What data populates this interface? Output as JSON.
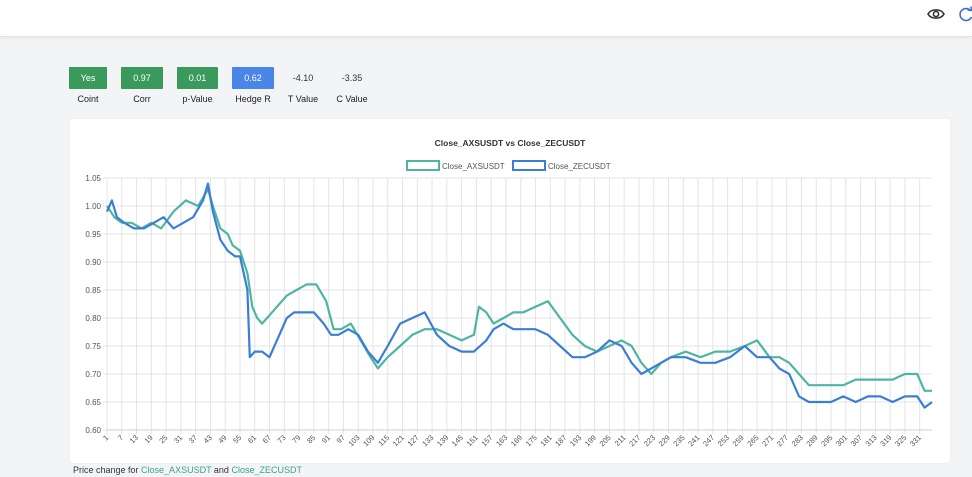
{
  "icons": {
    "view": "eye-icon",
    "refresh": "refresh-icon"
  },
  "stats": [
    {
      "label": "Coint",
      "value": "Yes",
      "color": "#3a9a5b"
    },
    {
      "label": "Corr",
      "value": "0.97",
      "color": "#3a9a5b"
    },
    {
      "label": "p-Value",
      "value": "0.01",
      "color": "#3a9a5b"
    },
    {
      "label": "Hedge R",
      "value": "0.62",
      "color": "#4a86e8"
    },
    {
      "label": "T Value",
      "value": "-4.10",
      "color": ""
    },
    {
      "label": "C Value",
      "value": "-3.35",
      "color": ""
    }
  ],
  "footer": {
    "prefix": "Price change for ",
    "ticker_a": "Close_AXSUSDT",
    "conj": " and ",
    "ticker_b": "Close_ZECUSDT"
  },
  "chart_data": {
    "type": "line",
    "title": "Close_AXSUSDT vs Close_ZECUSDT",
    "legend_position": "top-center",
    "grid": true,
    "xlim": [
      1,
      336
    ],
    "ylim": [
      0.6,
      1.05
    ],
    "x_ticks": [
      1,
      7,
      13,
      19,
      25,
      31,
      37,
      43,
      49,
      55,
      61,
      67,
      73,
      79,
      85,
      91,
      97,
      103,
      109,
      115,
      121,
      127,
      133,
      139,
      145,
      151,
      157,
      163,
      169,
      175,
      181,
      187,
      193,
      199,
      205,
      211,
      217,
      223,
      229,
      235,
      241,
      247,
      253,
      259,
      265,
      271,
      277,
      283,
      289,
      295,
      301,
      307,
      313,
      319,
      325,
      331
    ],
    "y_ticks": [
      0.6,
      0.65,
      0.7,
      0.75,
      0.8,
      0.85,
      0.9,
      0.95,
      1.0,
      1.05
    ],
    "y_tick_labels": [
      "0.60",
      "0.65",
      "0.70",
      "0.75",
      "0.80",
      "0.85",
      "0.90",
      "0.95",
      "1.00",
      "1.05"
    ],
    "series": [
      {
        "name": "Close_AXSUSDT",
        "color": "#4db6a3",
        "x": [
          1,
          4,
          7,
          11,
          15,
          19,
          23,
          28,
          33,
          38,
          42,
          44,
          47,
          50,
          52,
          55,
          58,
          60,
          62,
          64,
          66,
          70,
          74,
          78,
          82,
          86,
          90,
          93,
          96,
          100,
          104,
          108,
          111,
          115,
          120,
          125,
          130,
          135,
          140,
          145,
          150,
          152,
          155,
          158,
          162,
          166,
          170,
          175,
          180,
          185,
          190,
          195,
          200,
          205,
          210,
          214,
          218,
          222,
          226,
          230,
          236,
          242,
          248,
          254,
          260,
          265,
          270,
          274,
          278,
          282,
          286,
          290,
          295,
          300,
          305,
          310,
          315,
          320,
          325,
          330,
          333,
          336
        ],
        "y": [
          1.0,
          0.98,
          0.97,
          0.97,
          0.96,
          0.97,
          0.96,
          0.99,
          1.01,
          1.0,
          1.03,
          1.0,
          0.96,
          0.95,
          0.93,
          0.92,
          0.88,
          0.82,
          0.8,
          0.79,
          0.8,
          0.82,
          0.84,
          0.85,
          0.86,
          0.86,
          0.83,
          0.78,
          0.78,
          0.79,
          0.76,
          0.73,
          0.71,
          0.73,
          0.75,
          0.77,
          0.78,
          0.78,
          0.77,
          0.76,
          0.77,
          0.82,
          0.81,
          0.79,
          0.8,
          0.81,
          0.81,
          0.82,
          0.83,
          0.8,
          0.77,
          0.75,
          0.74,
          0.75,
          0.76,
          0.75,
          0.72,
          0.7,
          0.72,
          0.73,
          0.74,
          0.73,
          0.74,
          0.74,
          0.75,
          0.76,
          0.73,
          0.73,
          0.72,
          0.7,
          0.68,
          0.68,
          0.68,
          0.68,
          0.69,
          0.69,
          0.69,
          0.69,
          0.7,
          0.7,
          0.67,
          0.67
        ]
      },
      {
        "name": "Close_ZECUSDT",
        "color": "#3b7fd4",
        "x": [
          1,
          3,
          5,
          8,
          12,
          16,
          20,
          24,
          28,
          32,
          36,
          40,
          42,
          44,
          47,
          50,
          53,
          55,
          58,
          59,
          61,
          64,
          67,
          70,
          74,
          77,
          81,
          85,
          89,
          92,
          95,
          99,
          103,
          107,
          111,
          115,
          120,
          125,
          130,
          135,
          140,
          145,
          150,
          155,
          158,
          162,
          166,
          170,
          175,
          180,
          185,
          190,
          195,
          200,
          205,
          210,
          214,
          218,
          222,
          226,
          230,
          236,
          242,
          248,
          254,
          260,
          265,
          270,
          274,
          278,
          282,
          286,
          290,
          295,
          300,
          305,
          310,
          315,
          320,
          325,
          330,
          333,
          336
        ],
        "y": [
          0.99,
          1.01,
          0.98,
          0.97,
          0.96,
          0.96,
          0.97,
          0.98,
          0.96,
          0.97,
          0.98,
          1.01,
          1.04,
          0.99,
          0.94,
          0.92,
          0.91,
          0.91,
          0.85,
          0.73,
          0.74,
          0.74,
          0.73,
          0.76,
          0.8,
          0.81,
          0.81,
          0.81,
          0.79,
          0.77,
          0.77,
          0.78,
          0.77,
          0.74,
          0.72,
          0.75,
          0.79,
          0.8,
          0.81,
          0.77,
          0.75,
          0.74,
          0.74,
          0.76,
          0.78,
          0.79,
          0.78,
          0.78,
          0.78,
          0.77,
          0.75,
          0.73,
          0.73,
          0.74,
          0.76,
          0.75,
          0.72,
          0.7,
          0.71,
          0.72,
          0.73,
          0.73,
          0.72,
          0.72,
          0.73,
          0.75,
          0.73,
          0.73,
          0.71,
          0.7,
          0.66,
          0.65,
          0.65,
          0.65,
          0.66,
          0.65,
          0.66,
          0.66,
          0.65,
          0.66,
          0.66,
          0.64,
          0.65
        ]
      }
    ]
  }
}
